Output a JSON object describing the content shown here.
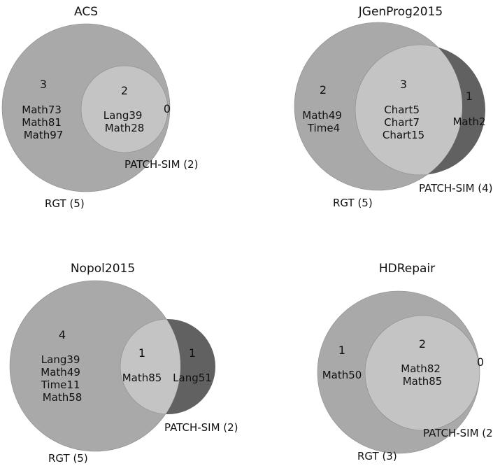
{
  "colors": {
    "rgt_only": "#a9a9a9",
    "intersection": "#c4c4c4",
    "patchsim_only": "#6e6e6e",
    "patchsim_only_dark": "#616161",
    "outline": "#8a8a8a",
    "text": "#111111"
  },
  "diagrams": [
    {
      "title": "ACS",
      "rgt_label": "RGT (5)",
      "patchsim_label": "PATCH-SIM (2)",
      "rgt_only": {
        "count": "3",
        "items": [
          "Math73",
          "Math81",
          "Math97"
        ]
      },
      "both": {
        "count": "2",
        "items": [
          "Lang39",
          "Math28"
        ]
      },
      "patchsim_only": {
        "count": "0",
        "items": []
      }
    },
    {
      "title": "JGenProg2015",
      "rgt_label": "RGT (5)",
      "patchsim_label": "PATCH-SIM (4)",
      "rgt_only": {
        "count": "2",
        "items": [
          "Math49",
          "Time4"
        ]
      },
      "both": {
        "count": "3",
        "items": [
          "Chart5",
          "Chart7",
          "Chart15"
        ]
      },
      "patchsim_only": {
        "count": "1",
        "items": [
          "Math2"
        ]
      }
    },
    {
      "title": "Nopol2015",
      "rgt_label": "RGT (5)",
      "patchsim_label": "PATCH-SIM (2)",
      "rgt_only": {
        "count": "4",
        "items": [
          "Lang39",
          "Math49",
          "Time11",
          "Math58"
        ]
      },
      "both": {
        "count": "1",
        "items": [
          "Math85"
        ]
      },
      "patchsim_only": {
        "count": "1",
        "items": [
          "Lang51"
        ]
      }
    },
    {
      "title": "HDRepair",
      "rgt_label": "RGT (3)",
      "patchsim_label": "PATCH-SIM (2",
      "rgt_only": {
        "count": "1",
        "items": [
          "Math50"
        ]
      },
      "both": {
        "count": "2",
        "items": [
          "Math82",
          "Math85"
        ]
      },
      "patchsim_only": {
        "count": "0",
        "items": []
      }
    }
  ]
}
